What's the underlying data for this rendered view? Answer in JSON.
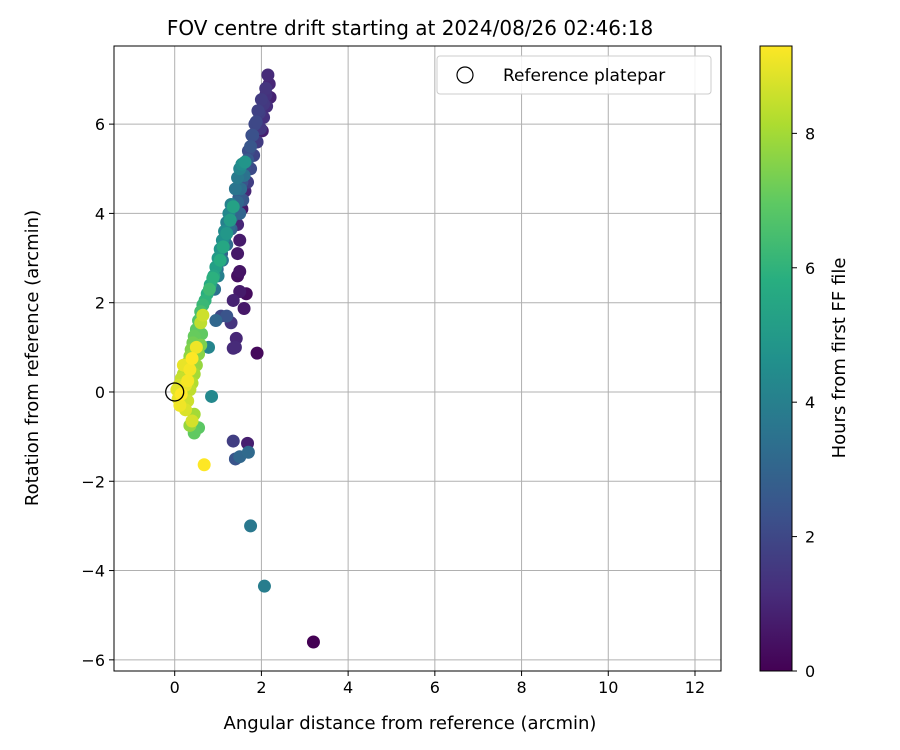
{
  "chart_data": {
    "type": "scatter",
    "title": "FOV centre drift starting at 2024/08/26 02:46:18",
    "xlabel": "Angular distance from reference (arcmin)",
    "ylabel": "Rotation from reference (arcmin)",
    "xlim": [
      -1.4,
      12.6
    ],
    "ylim": [
      -6.25,
      7.75
    ],
    "x_ticks": [
      0,
      2,
      4,
      6,
      8,
      10,
      12
    ],
    "y_ticks": [
      -6,
      -4,
      -2,
      0,
      2,
      4,
      6
    ],
    "grid": true,
    "legend": {
      "placement": "upper right",
      "entries": [
        "Reference platepar"
      ]
    },
    "reference_point": {
      "x": 0,
      "y": 0
    },
    "colorbar": {
      "label": "Hours from first FF file",
      "colormap": "viridis",
      "range": [
        0,
        9.3
      ],
      "ticks": [
        0,
        2,
        4,
        6,
        8
      ]
    },
    "series": [
      {
        "points": [
          [
            3.2,
            -5.6,
            0.0
          ],
          [
            1.9,
            0.87,
            0.2
          ],
          [
            1.68,
            -1.15,
            0.8
          ],
          [
            1.35,
            0.98,
            1.1
          ],
          [
            1.42,
            1.2,
            1.0
          ],
          [
            1.3,
            1.55,
            1.4
          ],
          [
            1.6,
            1.87,
            0.6
          ],
          [
            1.65,
            2.2,
            0.3
          ],
          [
            1.5,
            2.25,
            0.7
          ],
          [
            1.35,
            2.05,
            0.9
          ],
          [
            1.45,
            2.6,
            0.4
          ],
          [
            1.5,
            2.7,
            0.5
          ],
          [
            1.45,
            3.1,
            0.6
          ],
          [
            1.5,
            3.4,
            0.7
          ],
          [
            1.45,
            3.75,
            1.0
          ],
          [
            1.55,
            4.1,
            0.6
          ],
          [
            1.4,
            1.0,
            1.1
          ],
          [
            1.35,
            -1.1,
            1.7
          ],
          [
            1.4,
            -1.5,
            2.4
          ],
          [
            1.5,
            -1.45,
            3.1
          ],
          [
            1.7,
            -1.35,
            3.2
          ],
          [
            1.75,
            -3.0,
            3.7
          ],
          [
            2.07,
            -4.35,
            3.9
          ],
          [
            0.85,
            -0.1,
            4.3
          ],
          [
            1.07,
            1.7,
            2.0
          ],
          [
            1.2,
            1.7,
            2.4
          ],
          [
            0.78,
            1.0,
            4.2
          ],
          [
            0.95,
            1.6,
            3.1
          ],
          [
            0.92,
            2.3,
            3.5
          ],
          [
            1.0,
            2.6,
            4.0
          ],
          [
            1.1,
            2.95,
            3.6
          ],
          [
            1.2,
            3.3,
            3.2
          ],
          [
            1.3,
            3.65,
            3.0
          ],
          [
            1.4,
            4.0,
            2.8
          ],
          [
            1.48,
            4.35,
            2.6
          ],
          [
            1.55,
            4.7,
            2.4
          ],
          [
            1.62,
            5.05,
            2.3
          ],
          [
            1.7,
            5.4,
            2.2
          ],
          [
            1.78,
            5.75,
            2.1
          ],
          [
            1.85,
            6.0,
            2.0
          ],
          [
            1.92,
            6.3,
            1.8
          ],
          [
            2.0,
            6.55,
            1.6
          ],
          [
            2.1,
            6.8,
            1.4
          ],
          [
            2.15,
            7.1,
            1.1
          ],
          [
            2.2,
            6.6,
            0.9
          ],
          [
            2.12,
            6.4,
            1.2
          ],
          [
            2.05,
            6.15,
            1.3
          ],
          [
            1.98,
            5.9,
            1.5
          ],
          [
            2.02,
            5.85,
            0.8
          ],
          [
            1.9,
            5.6,
            1.6
          ],
          [
            1.82,
            5.3,
            1.9
          ],
          [
            1.75,
            5.0,
            2.1
          ],
          [
            1.68,
            4.7,
            1.7
          ],
          [
            1.62,
            4.5,
            1.0
          ],
          [
            1.57,
            4.3,
            2.5
          ],
          [
            1.5,
            4.0,
            3.0
          ],
          [
            1.4,
            4.55,
            3.6
          ],
          [
            1.45,
            4.8,
            3.8
          ],
          [
            1.5,
            5.0,
            4.2
          ],
          [
            1.55,
            5.1,
            4.5
          ],
          [
            1.62,
            5.15,
            4.8
          ],
          [
            1.3,
            4.2,
            4.1
          ],
          [
            1.25,
            4.0,
            4.3
          ],
          [
            1.2,
            3.8,
            4.0
          ],
          [
            1.15,
            3.6,
            4.4
          ],
          [
            1.1,
            3.4,
            4.6
          ],
          [
            1.05,
            3.2,
            4.8
          ],
          [
            1.0,
            3.0,
            5.0
          ],
          [
            0.95,
            2.8,
            5.2
          ],
          [
            0.9,
            2.6,
            5.4
          ],
          [
            0.82,
            2.4,
            5.6
          ],
          [
            0.75,
            2.2,
            5.8
          ],
          [
            0.7,
            2.05,
            6.0
          ],
          [
            0.65,
            1.95,
            6.2
          ],
          [
            0.6,
            1.8,
            6.5
          ],
          [
            0.55,
            1.6,
            6.7
          ],
          [
            0.5,
            1.4,
            6.9
          ],
          [
            0.45,
            1.25,
            7.1
          ],
          [
            0.42,
            1.1,
            7.3
          ],
          [
            0.38,
            0.95,
            7.5
          ],
          [
            0.35,
            0.8,
            7.7
          ],
          [
            0.3,
            0.65,
            7.9
          ],
          [
            0.25,
            0.55,
            8.1
          ],
          [
            0.2,
            0.4,
            8.3
          ],
          [
            0.15,
            0.3,
            8.5
          ],
          [
            0.1,
            0.15,
            8.7
          ],
          [
            0.05,
            0.05,
            8.9
          ],
          [
            0.08,
            -0.15,
            9.0
          ],
          [
            0.12,
            -0.3,
            9.1
          ],
          [
            0.25,
            -0.4,
            8.8
          ],
          [
            0.3,
            -0.2,
            8.6
          ],
          [
            0.35,
            0.05,
            8.4
          ],
          [
            0.4,
            0.2,
            8.2
          ],
          [
            0.45,
            0.4,
            8.0
          ],
          [
            0.5,
            0.6,
            7.8
          ],
          [
            0.55,
            0.85,
            7.6
          ],
          [
            0.6,
            1.05,
            7.4
          ],
          [
            0.62,
            1.3,
            7.0
          ],
          [
            0.65,
            1.72,
            8.6
          ],
          [
            0.6,
            1.55,
            8.4
          ],
          [
            0.5,
            1.0,
            9.1
          ],
          [
            0.4,
            0.75,
            9.3
          ],
          [
            0.35,
            0.5,
            9.2
          ],
          [
            0.2,
            0.6,
            9.0
          ],
          [
            0.15,
            -0.05,
            9.3
          ],
          [
            0.45,
            -0.5,
            8.0
          ],
          [
            0.4,
            -0.65,
            8.7
          ],
          [
            0.35,
            -0.75,
            7.8
          ],
          [
            0.55,
            -0.8,
            6.9
          ],
          [
            0.45,
            -0.92,
            7.0
          ],
          [
            0.68,
            -1.63,
            9.3
          ],
          [
            0.3,
            0.25,
            9.2
          ],
          [
            0.25,
            0.15,
            9.0
          ],
          [
            1.2,
            3.55,
            4.9
          ],
          [
            1.28,
            3.85,
            5.1
          ],
          [
            1.35,
            4.15,
            5.3
          ],
          [
            1.12,
            3.25,
            5.5
          ],
          [
            0.88,
            2.55,
            5.9
          ],
          [
            0.8,
            2.3,
            6.3
          ],
          [
            1.05,
            2.95,
            5.7
          ],
          [
            1.25,
            3.7,
            3.4
          ],
          [
            1.15,
            3.45,
            3.8
          ],
          [
            0.98,
            2.75,
            3.3
          ],
          [
            1.08,
            3.1,
            2.9
          ],
          [
            1.35,
            3.95,
            2.7
          ],
          [
            1.45,
            4.25,
            3.1
          ],
          [
            1.52,
            4.55,
            3.3
          ],
          [
            1.6,
            4.85,
            3.5
          ],
          [
            1.68,
            5.2,
            2.6
          ],
          [
            1.75,
            5.5,
            2.5
          ],
          [
            1.8,
            5.75,
            2.3
          ],
          [
            1.88,
            6.05,
            2.0
          ],
          [
            1.95,
            6.25,
            1.7
          ],
          [
            2.05,
            6.45,
            1.5
          ],
          [
            2.1,
            6.65,
            1.3
          ],
          [
            2.18,
            6.9,
            1.0
          ]
        ]
      }
    ]
  }
}
